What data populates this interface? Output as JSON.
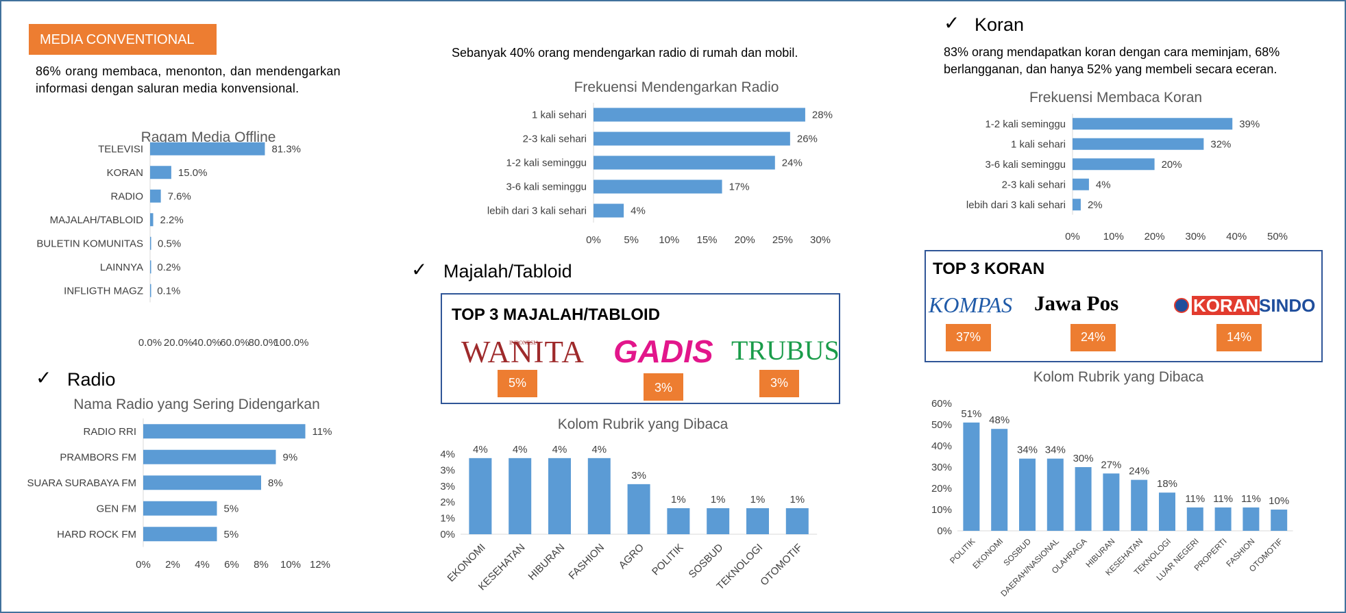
{
  "header": {
    "badge": "MEDIA CONVENTIONAL",
    "intro": "86% orang membaca, menonton, dan mendengarkan informasi dengan saluran media konvensional."
  },
  "radio_section": {
    "title": "Radio",
    "note": "Sebanyak 40% orang mendengarkan radio di rumah dan mobil."
  },
  "majalah_section": {
    "title": "Majalah/Tabloid",
    "top3_title": "TOP 3 MAJALAH/TABLOID",
    "brands": [
      {
        "name": "WANITA",
        "sub": "INDONESIA",
        "pct": "5%"
      },
      {
        "name": "GADIS",
        "pct": "3%"
      },
      {
        "name": "TRUBUS",
        "pct": "3%"
      }
    ]
  },
  "koran_section": {
    "title": "Koran",
    "note": "83% orang mendapatkan koran dengan cara meminjam, 68% berlangganan, dan hanya 52% yang membeli secara eceran.",
    "top3_title": "TOP 3 KORAN",
    "brands": [
      {
        "name": "KOMPAS",
        "pct": "37%"
      },
      {
        "name": "Jawa Pos",
        "pct": "24%"
      },
      {
        "name": "KORAN",
        "name2": "SINDO",
        "pct": "14%"
      }
    ]
  },
  "colors": {
    "bar": "#5b9bd5",
    "accent": "#ed7d31",
    "border": "#41719c",
    "box": "#2f5597"
  },
  "chart_data": [
    {
      "id": "offline",
      "type": "bar",
      "orientation": "horizontal",
      "title": "Ragam Media Offline",
      "categories": [
        "TELEVISI",
        "KORAN",
        "RADIO",
        "MAJALAH/TABLOID",
        "BULETIN KOMUNITAS",
        "LAINNYA",
        "INFLIGTH MAGZ"
      ],
      "values": [
        81.3,
        15.0,
        7.6,
        2.2,
        0.5,
        0.2,
        0.1
      ],
      "labels": [
        "81.3%",
        "15.0%",
        "7.6%",
        "2.2%",
        "0.5%",
        "0.2%",
        "0.1%"
      ],
      "xlim": [
        0,
        100
      ],
      "ticks": [
        "0.0%",
        "20.0%",
        "40.0%",
        "60.0%",
        "80.0%",
        "100.0%"
      ]
    },
    {
      "id": "radio_names",
      "type": "bar",
      "orientation": "horizontal",
      "title": "Nama Radio yang Sering Didengarkan",
      "categories": [
        "RADIO RRI",
        "PRAMBORS FM",
        "SUARA SURABAYA FM",
        "GEN FM",
        "HARD ROCK FM"
      ],
      "values": [
        11,
        9,
        8,
        5,
        5
      ],
      "labels": [
        "11%",
        "9%",
        "8%",
        "5%",
        "5%"
      ],
      "xlim": [
        0,
        12
      ],
      "ticks": [
        "0%",
        "2%",
        "4%",
        "6%",
        "8%",
        "10%",
        "12%"
      ]
    },
    {
      "id": "radio_freq",
      "type": "bar",
      "orientation": "horizontal",
      "title": "Frekuensi Mendengarkan Radio",
      "categories": [
        "1 kali sehari",
        "2-3 kali sehari",
        "1-2 kali seminggu",
        "3-6 kali seminggu",
        "lebih dari 3 kali sehari"
      ],
      "values": [
        28,
        26,
        24,
        17,
        4
      ],
      "labels": [
        "28%",
        "26%",
        "24%",
        "17%",
        "4%"
      ],
      "xlim": [
        0,
        30
      ],
      "ticks": [
        "0%",
        "5%",
        "10%",
        "15%",
        "20%",
        "25%",
        "30%"
      ]
    },
    {
      "id": "majalah_rubrik",
      "type": "bar",
      "orientation": "vertical",
      "title": "Kolom Rubrik yang Dibaca",
      "categories": [
        "EKONOMI",
        "KESEHATAN",
        "HIBURAN",
        "FASHION",
        "AGRO",
        "POLITIK",
        "SOSBUD",
        "TEKNOLOGI",
        "OTOMOTIF"
      ],
      "values": [
        3.8,
        3.8,
        3.8,
        3.8,
        2.5,
        1.3,
        1.3,
        1.3,
        1.3
      ],
      "labels": [
        "4%",
        "4%",
        "4%",
        "4%",
        "3%",
        "1%",
        "1%",
        "1%",
        "1%"
      ],
      "ylim": [
        0,
        4
      ],
      "ticks": [
        "0%",
        "1%",
        "2%",
        "3%",
        "3%",
        "4%"
      ]
    },
    {
      "id": "koran_freq",
      "type": "bar",
      "orientation": "horizontal",
      "title": "Frekuensi Membaca Koran",
      "categories": [
        "1-2 kali seminggu",
        "1 kali sehari",
        "3-6 kali seminggu",
        "2-3 kali sehari",
        "lebih dari 3 kali sehari"
      ],
      "values": [
        39,
        32,
        20,
        4,
        2
      ],
      "labels": [
        "39%",
        "32%",
        "20%",
        "4%",
        "2%"
      ],
      "xlim": [
        0,
        50
      ],
      "ticks": [
        "0%",
        "10%",
        "20%",
        "30%",
        "40%",
        "50%"
      ]
    },
    {
      "id": "koran_rubrik",
      "type": "bar",
      "orientation": "vertical",
      "title": "Kolom Rubrik yang Dibaca",
      "categories": [
        "POLITIK",
        "EKONOMI",
        "SOSBUD",
        "DAERAH/NASIONAL",
        "OLAHRAGA",
        "HIBURAN",
        "KESEHATAN",
        "TEKNOLOGI",
        "LUAR NEGERI",
        "PROPERTI",
        "FASHION",
        "OTOMOTIF"
      ],
      "values": [
        51,
        48,
        34,
        34,
        30,
        27,
        24,
        18,
        11,
        11,
        11,
        10
      ],
      "labels": [
        "51%",
        "48%",
        "34%",
        "34%",
        "30%",
        "27%",
        "24%",
        "18%",
        "11%",
        "11%",
        "11%",
        "10%"
      ],
      "ylim": [
        0,
        60
      ],
      "ticks": [
        "0%",
        "10%",
        "20%",
        "30%",
        "40%",
        "50%",
        "60%"
      ]
    }
  ]
}
